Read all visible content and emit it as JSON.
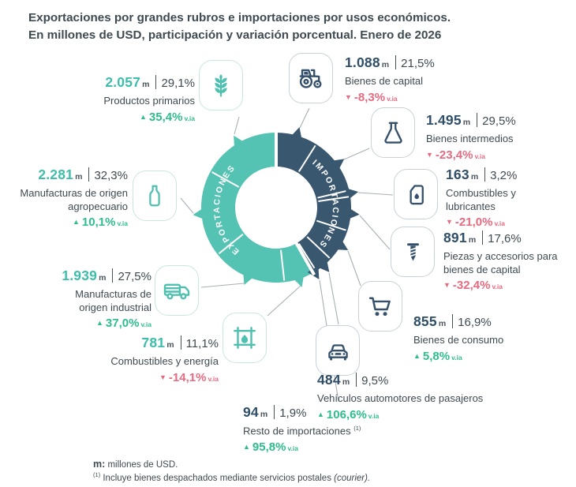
{
  "title": {
    "line1": "Exportaciones por grandes rubros e importaciones por usos económicos.",
    "line2": "En millones de USD, participación y variación porcentual. Enero de 2026"
  },
  "donut": {
    "exports_label": "EXPORTACIONES",
    "imports_label": "IMPORTACIONES"
  },
  "labels": {
    "unit": "m",
    "variation_suffix": "v.ia"
  },
  "colors": {
    "exports": "#55C3B3",
    "imports": "#3A5770",
    "up": "#2EBD8C",
    "down": "#E66A80"
  },
  "chart_data": {
    "type": "donut",
    "title": "Exportaciones por grandes rubros e importaciones por usos económicos",
    "unit": "millones de USD",
    "period": "Enero de 2026",
    "groups": [
      {
        "name": "Exportaciones",
        "color": "#55C3B3",
        "items": [
          {
            "label": "Productos primarios",
            "icon": "wheat-icon",
            "value": "2.057",
            "value_musd": 2057,
            "share": "29,1%",
            "share_pct": 29.1,
            "delta": "35,4%",
            "yoy_pct": 35.4,
            "direction": "up"
          },
          {
            "label": "Manufacturas de origen agropecuario",
            "icon": "bottle-icon",
            "value": "2.281",
            "value_musd": 2281,
            "share": "32,3%",
            "share_pct": 32.3,
            "delta": "10,1%",
            "yoy_pct": 10.1,
            "direction": "up"
          },
          {
            "label": "Manufacturas de origen industrial",
            "icon": "truck-icon",
            "value": "1.939",
            "value_musd": 1939,
            "share": "27,5%",
            "share_pct": 27.5,
            "delta": "37,0%",
            "yoy_pct": 37.0,
            "direction": "up"
          },
          {
            "label": "Combustibles y energía",
            "icon": "oil-barrel-icon",
            "value": "781",
            "value_musd": 781,
            "share": "11,1%",
            "share_pct": 11.1,
            "delta": "-14,1%",
            "yoy_pct": -14.1,
            "direction": "down"
          }
        ]
      },
      {
        "name": "Importaciones",
        "color": "#3A5770",
        "items": [
          {
            "label": "Bienes de capital",
            "icon": "tractor-icon",
            "value": "1.088",
            "value_musd": 1088,
            "share": "21,5%",
            "share_pct": 21.5,
            "delta": "-8,3%",
            "yoy_pct": -8.3,
            "direction": "down"
          },
          {
            "label": "Bienes intermedios",
            "icon": "flask-icon",
            "value": "1.495",
            "value_musd": 1495,
            "share": "29,5%",
            "share_pct": 29.5,
            "delta": "-23,4%",
            "yoy_pct": -23.4,
            "direction": "down"
          },
          {
            "label": "Combustibles y lubricantes",
            "icon": "oil-can-icon",
            "value": "163",
            "value_musd": 163,
            "share": "3,2%",
            "share_pct": 3.2,
            "delta": "-21,0%",
            "yoy_pct": -21.0,
            "direction": "down"
          },
          {
            "label": "Piezas y accesorios para bienes de capital",
            "icon": "screw-icon",
            "value": "891",
            "value_musd": 891,
            "share": "17,6%",
            "share_pct": 17.6,
            "delta": "-32,4%",
            "yoy_pct": -32.4,
            "direction": "down"
          },
          {
            "label": "Bienes de consumo",
            "icon": "shopping-cart-icon",
            "value": "855",
            "value_musd": 855,
            "share": "16,9%",
            "share_pct": 16.9,
            "delta": "5,8%",
            "yoy_pct": 5.8,
            "direction": "up"
          },
          {
            "label": "Vehículos automotores de pasajeros",
            "icon": "car-icon",
            "value": "484",
            "value_musd": 484,
            "share": "9,5%",
            "share_pct": 9.5,
            "delta": "106,6%",
            "yoy_pct": 106.6,
            "direction": "up"
          },
          {
            "label": "Resto de importaciones",
            "label_sup": "(1)",
            "icon": "",
            "value": "94",
            "value_musd": 94,
            "share": "1,9%",
            "share_pct": 1.9,
            "delta": "95,8%",
            "yoy_pct": 95.8,
            "direction": "up"
          }
        ]
      }
    ]
  },
  "footnotes": {
    "m_bold": "m:",
    "m_text": " millones de USD.",
    "sup": "(1)",
    "note_text": " Incluye bienes despachados mediante servicios postales ",
    "note_italic": "(courier)."
  }
}
